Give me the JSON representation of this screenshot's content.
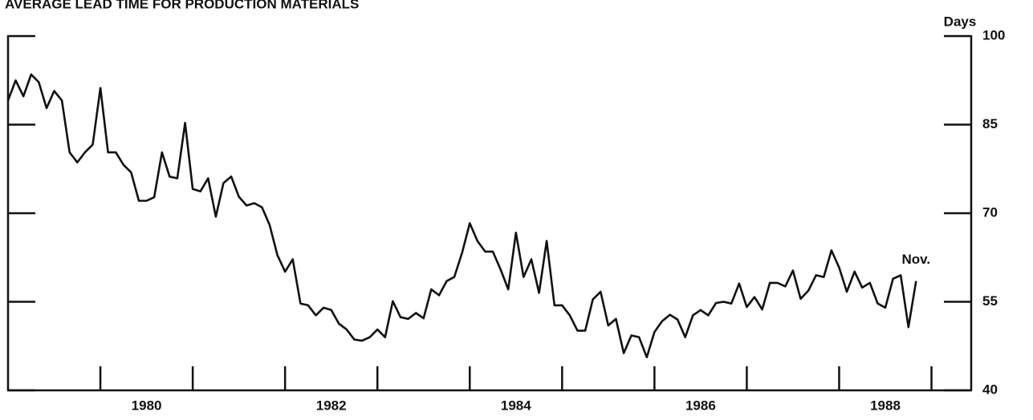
{
  "chart_data": {
    "type": "line",
    "title": "AVERAGE LEAD TIME FOR PRODUCTION MATERIALS",
    "y_axis_label": "Days",
    "annotation": "Nov.",
    "x": [
      1979,
      1979.083,
      1979.167,
      1979.25,
      1979.333,
      1979.417,
      1979.5,
      1979.583,
      1979.667,
      1979.75,
      1979.833,
      1979.917,
      1980,
      1980.083,
      1980.167,
      1980.25,
      1980.333,
      1980.417,
      1980.5,
      1980.583,
      1980.667,
      1980.75,
      1980.833,
      1980.917,
      1981,
      1981.083,
      1981.167,
      1981.25,
      1981.333,
      1981.417,
      1981.5,
      1981.583,
      1981.667,
      1981.75,
      1981.833,
      1981.917,
      1982,
      1982.083,
      1982.167,
      1982.25,
      1982.333,
      1982.417,
      1982.5,
      1982.583,
      1982.667,
      1982.75,
      1982.833,
      1982.917,
      1983,
      1983.083,
      1983.167,
      1983.25,
      1983.333,
      1983.417,
      1983.5,
      1983.583,
      1983.667,
      1983.75,
      1983.833,
      1983.917,
      1984,
      1984.083,
      1984.167,
      1984.25,
      1984.333,
      1984.417,
      1984.5,
      1984.583,
      1984.667,
      1984.75,
      1984.833,
      1984.917,
      1985,
      1985.083,
      1985.167,
      1985.25,
      1985.333,
      1985.417,
      1985.5,
      1985.583,
      1985.667,
      1985.75,
      1985.833,
      1985.917,
      1986,
      1986.083,
      1986.167,
      1986.25,
      1986.333,
      1986.417,
      1986.5,
      1986.583,
      1986.667,
      1986.75,
      1986.833,
      1986.917,
      1987,
      1987.083,
      1987.167,
      1987.25,
      1987.333,
      1987.417,
      1987.5,
      1987.583,
      1987.667,
      1987.75,
      1987.833,
      1987.917,
      1988,
      1988.083,
      1988.167,
      1988.25,
      1988.333,
      1988.417,
      1988.5,
      1988.583,
      1988.667,
      1988.75,
      1988.833
    ],
    "series": [
      {
        "color": "#111111",
        "values": [
          89.1,
          92.5,
          89.8,
          93.5,
          92.2,
          87.8,
          90.7,
          89.1,
          80.3,
          78.6,
          80.3,
          81.6,
          91.2,
          80.3,
          80.3,
          78.2,
          76.9,
          72.1,
          72.1,
          72.7,
          80.3,
          76.2,
          75.9,
          85.3,
          74.1,
          73.7,
          75.9,
          69.4,
          75.1,
          76.2,
          72.8,
          71.3,
          71.7,
          71.0,
          68.0,
          62.9,
          60.1,
          62.2,
          54.7,
          54.4,
          52.7,
          54.0,
          53.6,
          51.3,
          50.3,
          48.6,
          48.4,
          49.0,
          50.3,
          49.0,
          55.1,
          52.4,
          52.1,
          53.1,
          52.2,
          57.1,
          56.1,
          58.5,
          59.2,
          63.3,
          68.3,
          65.3,
          63.5,
          63.5,
          60.5,
          57.1,
          66.7,
          59.2,
          62.2,
          56.5,
          65.3,
          54.4,
          54.4,
          52.7,
          50.1,
          50.1,
          55.4,
          56.7,
          51.0,
          52.1,
          46.3,
          49.3,
          49.0,
          45.6,
          49.9,
          51.7,
          52.8,
          52.0,
          49.0,
          52.7,
          53.6,
          52.7,
          54.8,
          55.0,
          54.7,
          58.1,
          54.1,
          55.8,
          53.7,
          58.2,
          58.2,
          57.6,
          60.3,
          55.5,
          56.9,
          59.5,
          59.2,
          63.7,
          60.8,
          56.7,
          60.1,
          57.4,
          58.2,
          54.7,
          54.0,
          58.9,
          59.5,
          50.7,
          58.5
        ]
      }
    ],
    "xlim": [
      1979,
      1989.43
    ],
    "xticks": [
      {
        "value": 1980.5,
        "label": "1980"
      },
      {
        "value": 1982.5,
        "label": "1982"
      },
      {
        "value": 1984.5,
        "label": "1984"
      },
      {
        "value": 1986.5,
        "label": "1986"
      },
      {
        "value": 1988.5,
        "label": "1988"
      }
    ],
    "xtick_marks": [
      1980,
      1981,
      1982,
      1983,
      1984,
      1985,
      1986,
      1987,
      1988,
      1989
    ],
    "ylim": [
      40,
      100
    ],
    "yticks": [
      40,
      55,
      70,
      85,
      100
    ],
    "y_axis_side": "right"
  }
}
